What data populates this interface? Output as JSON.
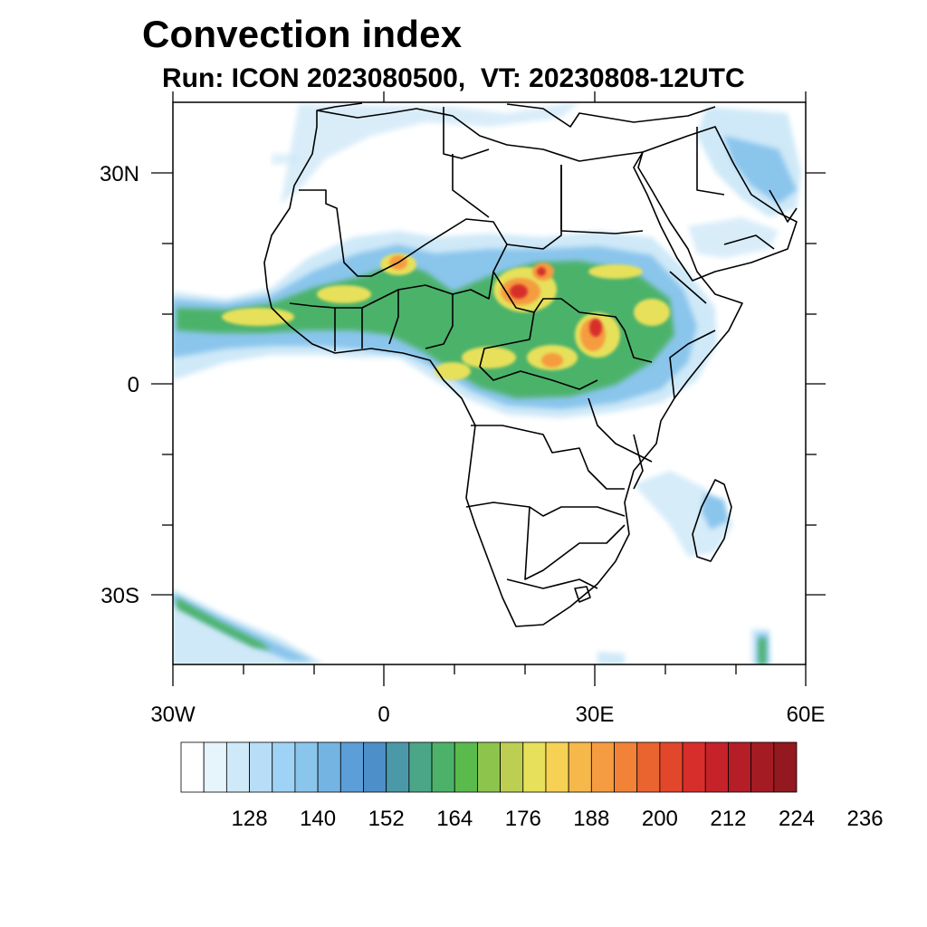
{
  "title": "Convection index",
  "subtitle": "Run: ICON 2023080500,  VT: 20230808-12UTC",
  "lon_labels": [
    "30W",
    "0",
    "30E",
    "60E"
  ],
  "lat_labels": [
    "30N",
    "0",
    "30S"
  ],
  "lon_range": [
    -30,
    60
  ],
  "lat_range": [
    -40,
    40
  ],
  "colorbar": {
    "labels": [
      "128",
      "140",
      "152",
      "164",
      "176",
      "188",
      "200",
      "212",
      "224",
      "236"
    ],
    "colors": [
      "#ffffff",
      "#e6f4fb",
      "#cfe9f8",
      "#b7def6",
      "#9fd3f5",
      "#8ac5ec",
      "#74b4e2",
      "#5b9ed8",
      "#4d8fc8",
      "#4a98a8",
      "#4ba688",
      "#4cb26a",
      "#5aba4c",
      "#8cc44c",
      "#bccf52",
      "#e7e05a",
      "#f7d154",
      "#f6b84a",
      "#f59c40",
      "#f28238",
      "#ea6430",
      "#e2472c",
      "#d72e2b",
      "#c62229",
      "#b51d27",
      "#a51b24",
      "#931820"
    ]
  }
}
